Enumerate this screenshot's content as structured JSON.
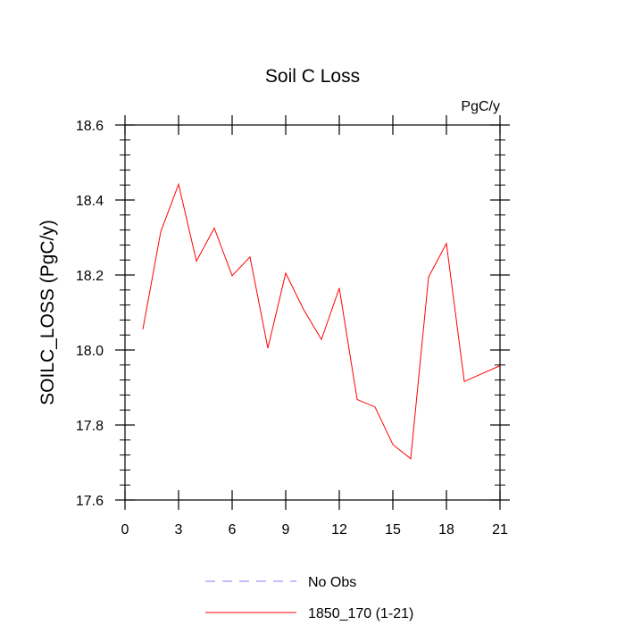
{
  "chart_data": {
    "type": "line",
    "title": "Soil C Loss",
    "units_label": "PgC/y",
    "xlabel": "",
    "ylabel": "SOILC_LOSS  (PgC/y)",
    "xlim": [
      0,
      21
    ],
    "ylim": [
      17.6,
      18.6
    ],
    "xticks": [
      0,
      3,
      6,
      9,
      12,
      15,
      18,
      21
    ],
    "xtick_labels": [
      "0",
      "3",
      "6",
      "9",
      "12",
      "15",
      "18",
      "21"
    ],
    "yticks": [
      17.6,
      17.8,
      18.0,
      18.2,
      18.4,
      18.6
    ],
    "ytick_labels": [
      "17.6",
      "17.8",
      "18.0",
      "18.2",
      "18.4",
      "18.6"
    ],
    "grid": false,
    "legend_placement": "bottom",
    "series": [
      {
        "name": "1850_170 (1-21)",
        "color": "#ff0000",
        "line_style": "solid",
        "x": [
          1,
          2,
          3,
          4,
          5,
          6,
          7,
          8,
          9,
          10,
          11,
          12,
          13,
          14,
          15,
          16,
          17,
          18,
          19,
          20,
          21
        ],
        "values": [
          18.055,
          18.315,
          18.442,
          18.237,
          18.325,
          18.198,
          18.248,
          18.005,
          18.205,
          18.108,
          18.028,
          18.165,
          17.868,
          17.848,
          17.748,
          17.71,
          18.195,
          18.284,
          17.916,
          17.937,
          17.958
        ]
      }
    ],
    "legend": [
      {
        "label": "No Obs",
        "color": "#8080ff",
        "line_style": "dashed"
      },
      {
        "label": "1850_170 (1-21)",
        "color": "#ff0000",
        "line_style": "solid"
      }
    ]
  }
}
